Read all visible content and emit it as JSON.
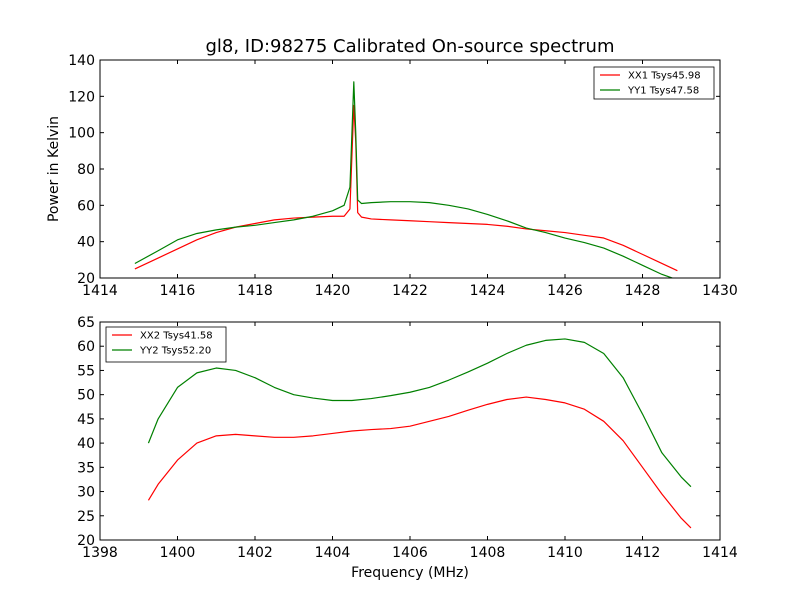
{
  "chart_data": [
    {
      "type": "line",
      "title": "gl8, ID:98275 Calibrated On-source spectrum",
      "xlabel": "",
      "ylabel": "Power in Kelvin",
      "xlim": [
        1414,
        1430
      ],
      "ylim": [
        20,
        140
      ],
      "xticks": [
        1414,
        1416,
        1418,
        1420,
        1422,
        1424,
        1426,
        1428,
        1430
      ],
      "yticks": [
        20,
        40,
        60,
        80,
        100,
        120,
        140
      ],
      "grid": false,
      "legend_position": "top-right",
      "series": [
        {
          "name": "XX1 Tsys45.98",
          "color": "#ff0000",
          "x": [
            1414.9,
            1415.5,
            1416.0,
            1416.5,
            1417.0,
            1417.5,
            1418.0,
            1418.5,
            1419.0,
            1419.5,
            1420.0,
            1420.3,
            1420.45,
            1420.55,
            1420.6,
            1420.65,
            1420.75,
            1421.0,
            1421.5,
            1422.0,
            1422.5,
            1423.0,
            1423.5,
            1424.0,
            1424.5,
            1425.0,
            1425.5,
            1426.0,
            1426.5,
            1427.0,
            1427.5,
            1428.0,
            1428.5,
            1428.9
          ],
          "y": [
            25,
            31,
            36,
            41,
            45,
            48,
            50,
            52,
            53,
            53.5,
            54,
            54,
            58,
            115,
            95,
            56,
            53.5,
            52.5,
            52,
            51.5,
            51,
            50.5,
            50,
            49.5,
            48.5,
            47,
            46,
            45,
            43.5,
            42,
            38,
            33,
            28,
            24
          ]
        },
        {
          "name": "YY1 Tsys47.58",
          "color": "#008000",
          "x": [
            1414.9,
            1415.5,
            1416.0,
            1416.5,
            1417.0,
            1417.5,
            1418.0,
            1418.5,
            1419.0,
            1419.5,
            1420.0,
            1420.3,
            1420.45,
            1420.55,
            1420.6,
            1420.65,
            1420.75,
            1421.0,
            1421.5,
            1422.0,
            1422.5,
            1423.0,
            1423.5,
            1424.0,
            1424.5,
            1425.0,
            1425.5,
            1426.0,
            1426.5,
            1427.0,
            1427.5,
            1428.0,
            1428.5,
            1428.9
          ],
          "y": [
            28,
            35,
            41,
            44.5,
            46.5,
            48,
            49,
            50.5,
            52,
            54,
            57,
            60,
            70,
            128,
            100,
            63,
            61,
            61.5,
            62,
            62,
            61.5,
            60,
            58,
            55,
            51.5,
            47.5,
            45,
            42,
            39.5,
            36.5,
            32,
            27,
            22,
            19
          ]
        }
      ]
    },
    {
      "type": "line",
      "title": "",
      "xlabel": "Frequency (MHz)",
      "ylabel": "",
      "xlim": [
        1398,
        1414
      ],
      "ylim": [
        20,
        65
      ],
      "xticks": [
        1398,
        1400,
        1402,
        1404,
        1406,
        1408,
        1410,
        1412,
        1414
      ],
      "yticks": [
        20,
        25,
        30,
        35,
        40,
        45,
        50,
        55,
        60,
        65
      ],
      "grid": false,
      "legend_position": "top-left",
      "series": [
        {
          "name": "XX2 Tsys41.58",
          "color": "#ff0000",
          "x": [
            1399.25,
            1399.5,
            1400.0,
            1400.5,
            1401.0,
            1401.5,
            1402.0,
            1402.5,
            1403.0,
            1403.5,
            1404.0,
            1404.5,
            1405.0,
            1405.5,
            1406.0,
            1406.5,
            1407.0,
            1407.5,
            1408.0,
            1408.5,
            1409.0,
            1409.5,
            1410.0,
            1410.5,
            1411.0,
            1411.5,
            1412.0,
            1412.5,
            1413.0,
            1413.25
          ],
          "y": [
            28.2,
            31.5,
            36.5,
            40,
            41.5,
            41.8,
            41.5,
            41.2,
            41.2,
            41.5,
            42,
            42.5,
            42.8,
            43,
            43.5,
            44.5,
            45.5,
            46.8,
            48,
            49,
            49.5,
            49,
            48.3,
            47,
            44.5,
            40.5,
            35,
            29.5,
            24.5,
            22.5
          ]
        },
        {
          "name": "YY2 Tsys52.20",
          "color": "#008000",
          "x": [
            1399.25,
            1399.5,
            1400.0,
            1400.5,
            1401.0,
            1401.5,
            1402.0,
            1402.5,
            1403.0,
            1403.5,
            1404.0,
            1404.5,
            1405.0,
            1405.5,
            1406.0,
            1406.5,
            1407.0,
            1407.5,
            1408.0,
            1408.5,
            1409.0,
            1409.5,
            1410.0,
            1410.5,
            1411.0,
            1411.5,
            1412.0,
            1412.5,
            1413.0,
            1413.25
          ],
          "y": [
            40,
            45,
            51.5,
            54.5,
            55.5,
            55,
            53.5,
            51.5,
            50,
            49.3,
            48.8,
            48.8,
            49.2,
            49.8,
            50.5,
            51.5,
            53,
            54.7,
            56.5,
            58.5,
            60.2,
            61.2,
            61.5,
            60.8,
            58.5,
            53.5,
            46,
            38,
            33,
            31
          ]
        }
      ]
    }
  ]
}
